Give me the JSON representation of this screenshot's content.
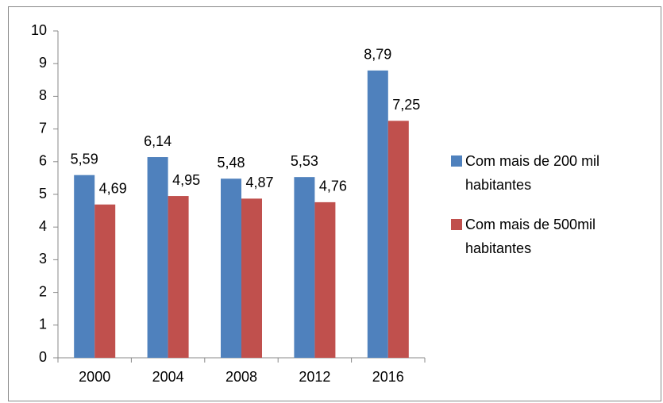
{
  "chart_data": {
    "type": "bar",
    "categories": [
      "2000",
      "2004",
      "2008",
      "2012",
      "2016"
    ],
    "series": [
      {
        "name": "Com mais de 200 mil habitantes",
        "color": "#4f81bd",
        "values": [
          5.59,
          6.14,
          5.48,
          5.53,
          8.79
        ],
        "value_labels": [
          "5,59",
          "6,14",
          "5,48",
          "5,53",
          "8,79"
        ]
      },
      {
        "name": "Com mais de 500mil habitantes",
        "color": "#c0504d",
        "values": [
          4.69,
          4.95,
          4.87,
          4.76,
          7.25
        ],
        "value_labels": [
          "4,69",
          "4,95",
          "4,87",
          "4,76",
          "7,25"
        ]
      }
    ],
    "ylim": [
      0,
      10
    ],
    "yticks": [
      0,
      1,
      2,
      3,
      4,
      5,
      6,
      7,
      8,
      9,
      10
    ],
    "grid": false,
    "legend": "right"
  }
}
